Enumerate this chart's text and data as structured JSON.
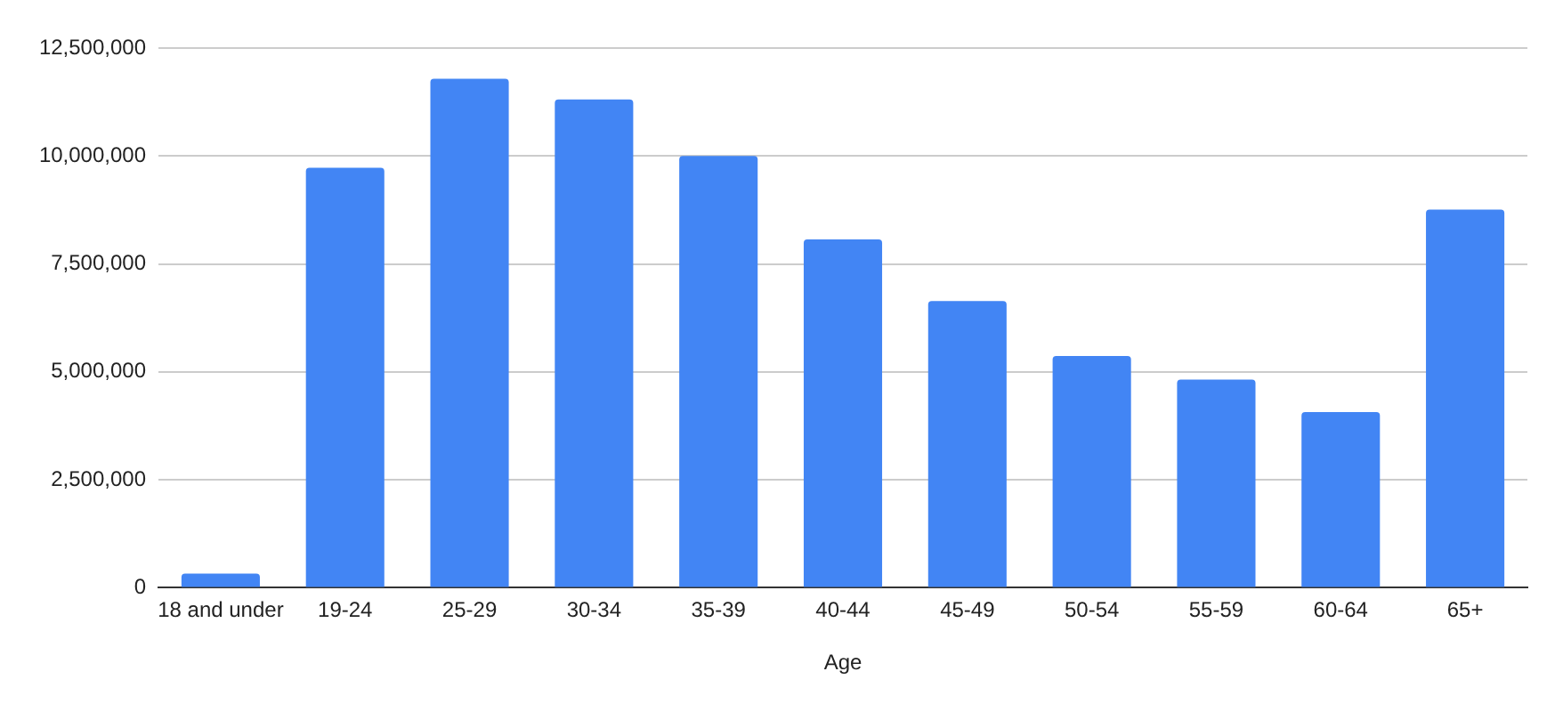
{
  "chart_data": {
    "type": "bar",
    "xlabel": "Age",
    "categories": [
      "18 and under",
      "19-24",
      "25-29",
      "30-34",
      "35-39",
      "40-44",
      "45-49",
      "50-54",
      "55-59",
      "60-64",
      "65+"
    ],
    "values": [
      330000,
      9730000,
      11790000,
      11310000,
      10000000,
      8070000,
      6640000,
      5370000,
      4820000,
      4070000,
      8760000
    ],
    "color": "#4285f4",
    "ylim": [
      0,
      12500000
    ],
    "yticks": [
      0,
      {
        "value": 2500000,
        "label": "2,500,000"
      },
      {
        "value": 5000000,
        "label": "5,000,000"
      },
      {
        "value": 7500000,
        "label": "7,500,000"
      },
      {
        "value": 10000000,
        "label": "10,000,000"
      },
      {
        "value": 12500000,
        "label": "12,500,000"
      }
    ],
    "grid": "y"
  }
}
